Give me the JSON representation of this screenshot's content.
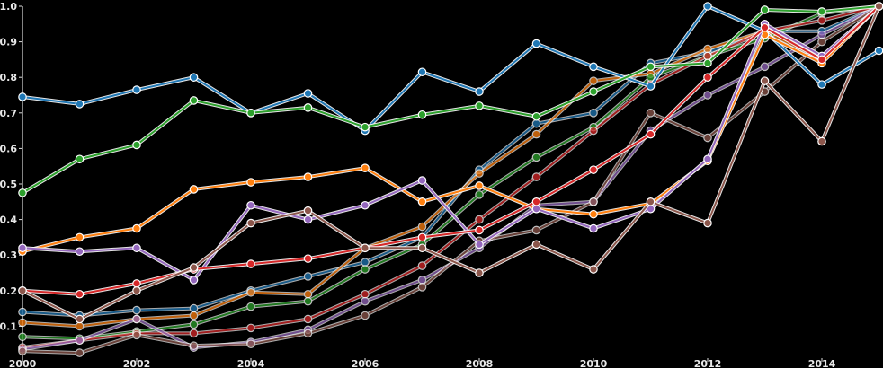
{
  "chart_data": {
    "type": "line",
    "title": "",
    "xlabel": "",
    "ylabel": "",
    "x": [
      2000,
      2001,
      2002,
      2003,
      2004,
      2005,
      2006,
      2007,
      2008,
      2009,
      2010,
      2011,
      2012,
      2013,
      2014,
      2015
    ],
    "xticks": [
      "2000",
      "2002",
      "2004",
      "2006",
      "2008",
      "2010",
      "2012",
      "2014"
    ],
    "yticks": [
      "0.1",
      "0.2",
      "0.3",
      "0.4",
      "0.5",
      "0.6",
      "0.7",
      "0.8",
      "0.9",
      "1.0"
    ],
    "ylim": [
      0,
      1.0
    ],
    "grid": false,
    "legend": "none",
    "series": [
      {
        "name": "blue",
        "color": "#1f77b4",
        "light": false,
        "values": [
          0.745,
          0.725,
          0.765,
          0.8,
          0.7,
          0.755,
          0.65,
          0.815,
          0.76,
          0.895,
          0.83,
          0.775,
          1.0,
          0.93,
          0.78,
          0.875
        ]
      },
      {
        "name": "green",
        "color": "#2ca02c",
        "light": false,
        "values": [
          0.475,
          0.57,
          0.61,
          0.735,
          0.7,
          0.715,
          0.66,
          0.695,
          0.72,
          0.69,
          0.76,
          0.83,
          0.84,
          0.99,
          0.985,
          1.0
        ]
      },
      {
        "name": "orange",
        "color": "#ff7f0e",
        "light": false,
        "values": [
          0.31,
          0.35,
          0.375,
          0.485,
          0.505,
          0.52,
          0.545,
          0.45,
          0.495,
          0.43,
          0.415,
          0.445,
          0.565,
          0.92,
          0.84,
          1.0
        ]
      },
      {
        "name": "purple",
        "color": "#9467bd",
        "light": false,
        "values": [
          0.32,
          0.31,
          0.32,
          0.23,
          0.44,
          0.4,
          0.44,
          0.51,
          0.33,
          0.43,
          0.375,
          0.43,
          0.57,
          0.95,
          0.86,
          1.0
        ]
      },
      {
        "name": "red",
        "color": "#d62728",
        "light": false,
        "values": [
          0.2,
          0.19,
          0.22,
          0.26,
          0.275,
          0.29,
          0.32,
          0.35,
          0.37,
          0.45,
          0.54,
          0.64,
          0.8,
          0.94,
          0.85,
          1.0
        ]
      },
      {
        "name": "brown",
        "color": "#8c564b",
        "light": false,
        "values": [
          0.2,
          0.12,
          0.2,
          0.265,
          0.39,
          0.425,
          0.32,
          0.32,
          0.25,
          0.33,
          0.26,
          0.45,
          0.39,
          0.79,
          0.62,
          1.0
        ]
      },
      {
        "name": "blue-light",
        "color": "#1f77b4",
        "light": true,
        "values": [
          0.14,
          0.13,
          0.145,
          0.15,
          0.2,
          0.24,
          0.28,
          0.35,
          0.54,
          0.67,
          0.7,
          0.84,
          0.87,
          0.93,
          0.93,
          1.0
        ]
      },
      {
        "name": "orange-light",
        "color": "#ff7f0e",
        "light": true,
        "values": [
          0.11,
          0.1,
          0.12,
          0.13,
          0.195,
          0.19,
          0.32,
          0.38,
          0.53,
          0.64,
          0.79,
          0.81,
          0.88,
          0.93,
          0.85,
          1.0
        ]
      },
      {
        "name": "green-light",
        "color": "#2ca02c",
        "light": true,
        "values": [
          0.07,
          0.065,
          0.085,
          0.105,
          0.155,
          0.17,
          0.26,
          0.33,
          0.47,
          0.575,
          0.66,
          0.8,
          0.86,
          0.91,
          0.98,
          1.0
        ]
      },
      {
        "name": "red-light",
        "color": "#d62728",
        "light": true,
        "values": [
          0.04,
          0.06,
          0.08,
          0.08,
          0.095,
          0.12,
          0.19,
          0.27,
          0.4,
          0.52,
          0.65,
          0.78,
          0.86,
          0.93,
          0.96,
          1.0
        ]
      },
      {
        "name": "purple-light",
        "color": "#9467bd",
        "light": true,
        "values": [
          0.035,
          0.06,
          0.12,
          0.04,
          0.055,
          0.09,
          0.17,
          0.23,
          0.32,
          0.44,
          0.45,
          0.65,
          0.75,
          0.83,
          0.92,
          1.0
        ]
      },
      {
        "name": "brown-light",
        "color": "#8c564b",
        "light": true,
        "values": [
          0.03,
          0.025,
          0.075,
          0.045,
          0.05,
          0.08,
          0.13,
          0.21,
          0.34,
          0.37,
          0.45,
          0.7,
          0.63,
          0.76,
          0.9,
          1.0
        ]
      }
    ]
  }
}
